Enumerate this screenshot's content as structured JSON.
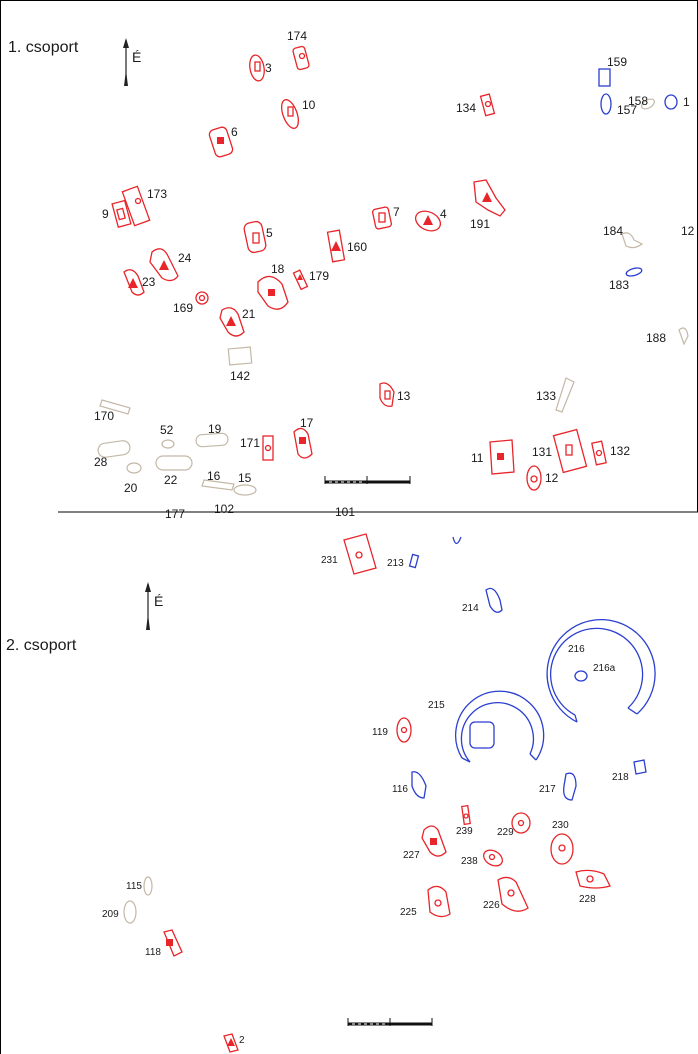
{
  "group1": {
    "title": "1. csoport",
    "north": "É",
    "labels": [
      "174",
      "3",
      "10",
      "6",
      "134",
      "159",
      "158",
      "157",
      "173",
      "9",
      "7",
      "4",
      "191",
      "5",
      "184",
      "160",
      "24",
      "23",
      "18",
      "179",
      "169",
      "21",
      "183",
      "188",
      "142",
      "13",
      "133",
      "170",
      "52",
      "19",
      "171",
      "17",
      "28",
      "22",
      "20",
      "16",
      "15",
      "11",
      "131",
      "132",
      "12",
      "102",
      "101",
      "177",
      "1",
      "12"
    ]
  },
  "group2": {
    "title": "2. csoport",
    "north": "É",
    "labels": [
      "231",
      "213",
      "214",
      "216",
      "216a",
      "215",
      "119",
      "116",
      "217",
      "218",
      "239",
      "230",
      "229",
      "227",
      "238",
      "115",
      "209",
      "225",
      "226",
      "228",
      "118",
      "2"
    ]
  },
  "colors": {
    "red_features": "#e8252a",
    "blue_features": "#2b3fd0",
    "tan_features": "#c4b8a6"
  }
}
